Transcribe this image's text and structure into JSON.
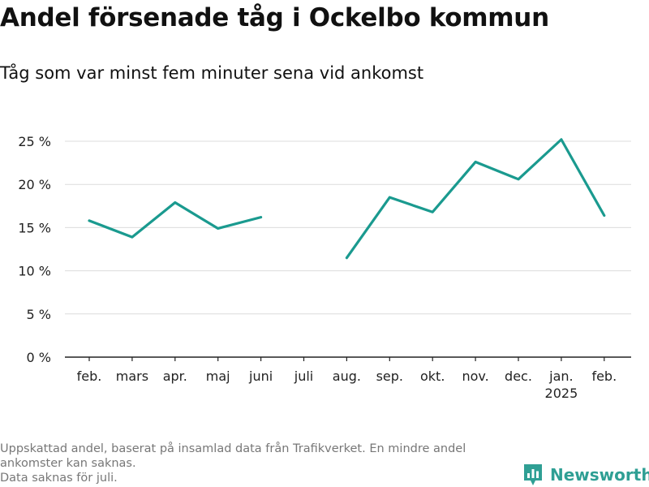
{
  "title": "Andel försenade tåg i Ockelbo kommun",
  "subtitle": "Tåg som var minst fem minuter sena vid ankomst",
  "footnote": [
    "Uppskattad andel, baserat på insamlad data från Trafikverket. En mindre andel",
    "ankomster kan saknas.",
    "Data saknas för juli."
  ],
  "brand": {
    "name": "Newsworthy",
    "icon": "newsworthy-logo-icon",
    "color": "#2f9f94"
  },
  "chart_data": {
    "type": "line",
    "categories": [
      "feb.",
      "mars",
      "apr.",
      "maj",
      "juni",
      "juli",
      "aug.",
      "sep.",
      "okt.",
      "nov.",
      "dec.",
      "jan.",
      "feb."
    ],
    "year_labels": {
      "11": "2025"
    },
    "series": [
      {
        "values": [
          15.8,
          13.9,
          17.9,
          14.9,
          16.2,
          null,
          11.5,
          18.5,
          16.8,
          22.6,
          20.6,
          25.2,
          16.4
        ],
        "color": "#1a9a8f"
      }
    ],
    "y_ticks": [
      0,
      5,
      10,
      15,
      20,
      25
    ],
    "y_tick_labels": [
      "0 %",
      "5 %",
      "10 %",
      "15 %",
      "20 %",
      "25 %"
    ],
    "ylim": [
      0,
      25
    ],
    "grid": true,
    "xlabel": "",
    "ylabel": ""
  }
}
